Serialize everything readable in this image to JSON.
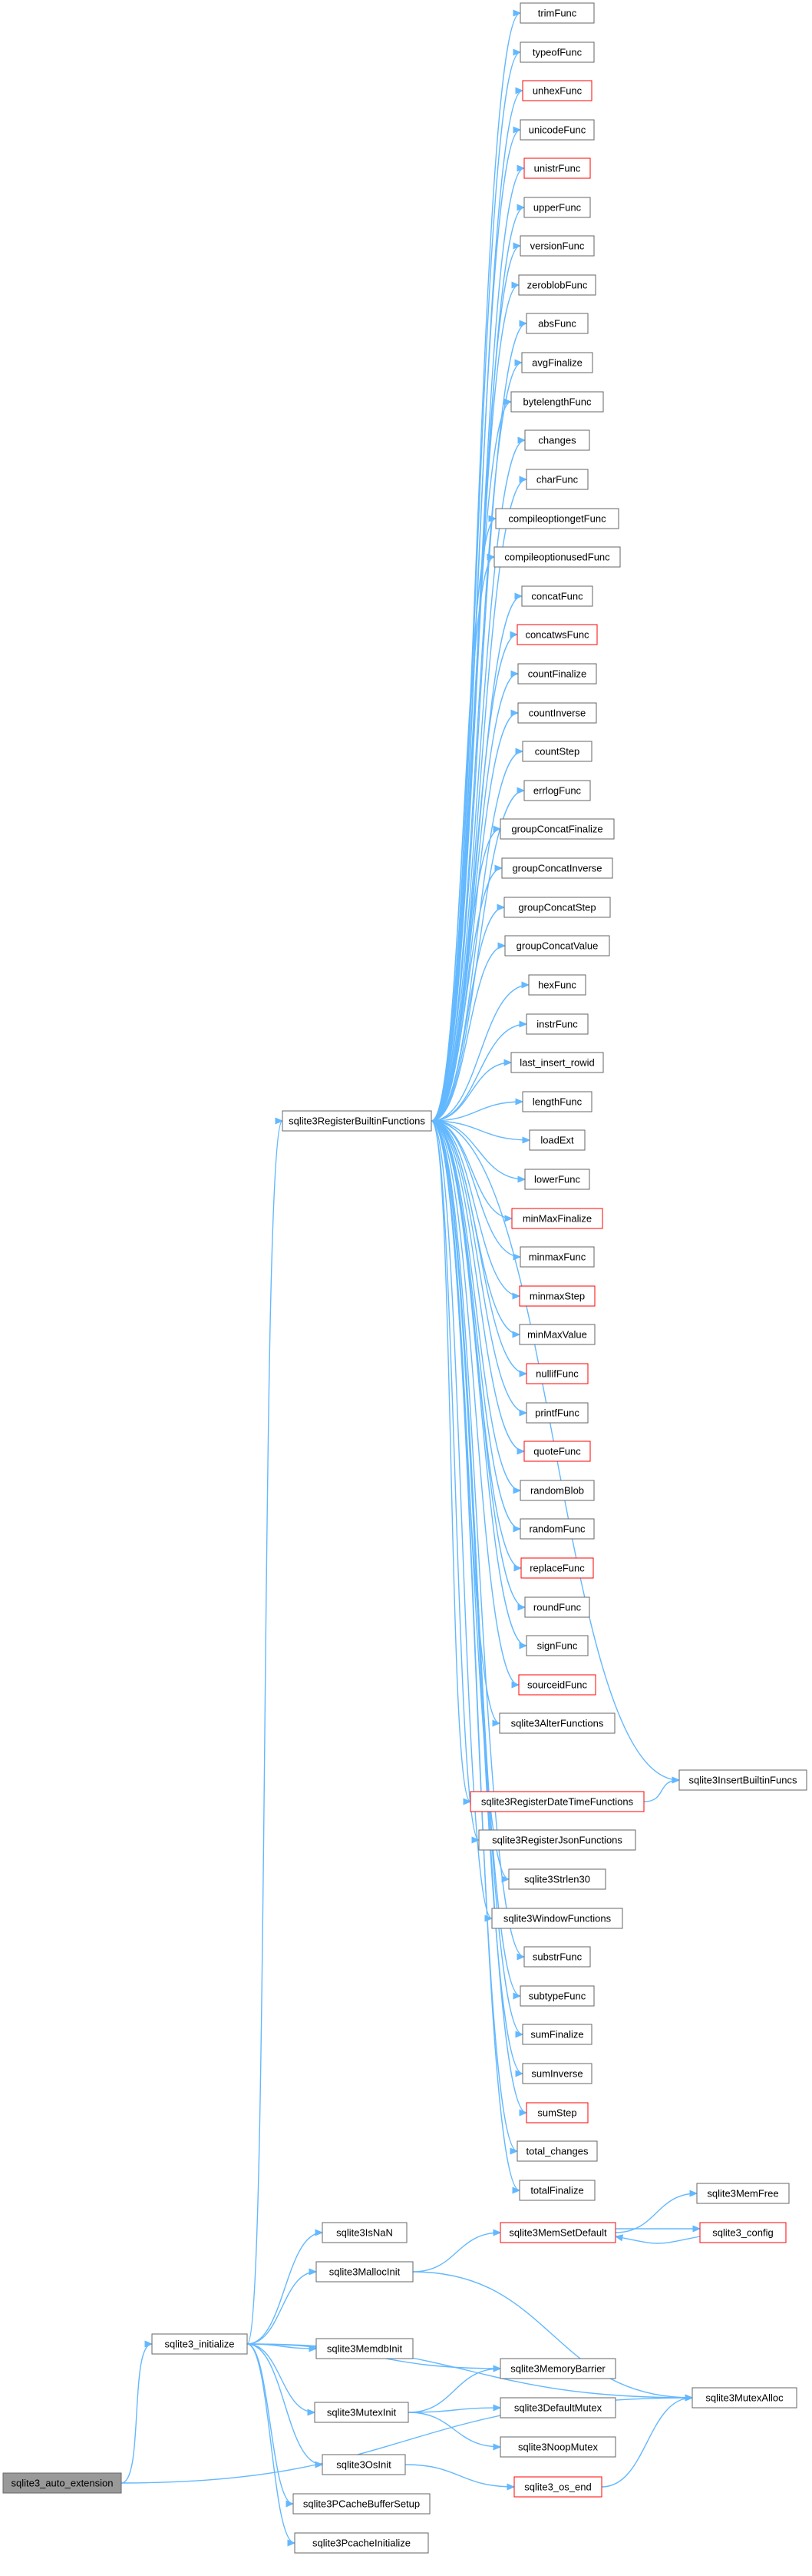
{
  "graph": {
    "colors": {
      "edge": "#63b8ff",
      "node_border": "#666666",
      "node_border_truncated": "#ff0000",
      "root_fill": "#999999"
    },
    "nodes": {
      "n_auto": "sqlite3_auto_extension",
      "n_init": "sqlite3_initialize",
      "n_reg": "sqlite3RegisterBuiltinFunctions",
      "n_trim": "trimFunc",
      "n_typeof": "typeofFunc",
      "n_unhex": "unhexFunc",
      "n_unicode": "unicodeFunc",
      "n_unistr": "unistrFunc",
      "n_upper": "upperFunc",
      "n_version": "versionFunc",
      "n_zeroblob": "zeroblobFunc",
      "n_abs": "absFunc",
      "n_avgfin": "avgFinalize",
      "n_bytelen": "bytelengthFunc",
      "n_changes": "changes",
      "n_char": "charFunc",
      "n_cog": "compileoptiongetFunc",
      "n_cou": "compileoptionusedFunc",
      "n_concat": "concatFunc",
      "n_concatws": "concatwsFunc",
      "n_countfin": "countFinalize",
      "n_countinv": "countInverse",
      "n_countstep": "countStep",
      "n_errlog": "errlogFunc",
      "n_gcfin": "groupConcatFinalize",
      "n_gcinv": "groupConcatInverse",
      "n_gcstep": "groupConcatStep",
      "n_gcval": "groupConcatValue",
      "n_hex": "hexFunc",
      "n_instr": "instrFunc",
      "n_lastins": "last_insert_rowid",
      "n_length": "lengthFunc",
      "n_loadext": "loadExt",
      "n_lower": "lowerFunc",
      "n_mmfin": "minMaxFinalize",
      "n_minmax": "minmaxFunc",
      "n_mmstep": "minmaxStep",
      "n_mmval": "minMaxValue",
      "n_nullif": "nullifFunc",
      "n_printf": "printfFunc",
      "n_quote": "quoteFunc",
      "n_rblob": "randomBlob",
      "n_random": "randomFunc",
      "n_replace": "replaceFunc",
      "n_round": "roundFunc",
      "n_sign": "signFunc",
      "n_sourceid": "sourceidFunc",
      "n_alter": "sqlite3AlterFunctions",
      "n_insbuiltin": "sqlite3InsertBuiltinFuncs",
      "n_regdt": "sqlite3RegisterDateTimeFunctions",
      "n_regjson": "sqlite3RegisterJsonFunctions",
      "n_strlen": "sqlite3Strlen30",
      "n_window": "sqlite3WindowFunctions",
      "n_substr": "substrFunc",
      "n_subtype": "subtypeFunc",
      "n_sumfin": "sumFinalize",
      "n_suminv": "sumInverse",
      "n_sumstep": "sumStep",
      "n_totch": "total_changes",
      "n_totfin": "totalFinalize",
      "n_isnan": "sqlite3IsNaN",
      "n_mallocinit": "sqlite3MallocInit",
      "n_memdbinit": "sqlite3MemdbInit",
      "n_mutexinit": "sqlite3MutexInit",
      "n_osinit": "sqlite3OsInit",
      "n_pcbuf": "sqlite3PCacheBufferSetup",
      "n_pcinit": "sqlite3PcacheInitialize",
      "n_memset": "sqlite3MemSetDefault",
      "n_memfree": "sqlite3MemFree",
      "n_config": "sqlite3_config",
      "n_membar": "sqlite3MemoryBarrier",
      "n_defmutex": "sqlite3DefaultMutex",
      "n_noopmutex": "sqlite3NoopMutex",
      "n_osend": "sqlite3_os_end",
      "n_mutexalloc": "sqlite3MutexAlloc"
    }
  }
}
